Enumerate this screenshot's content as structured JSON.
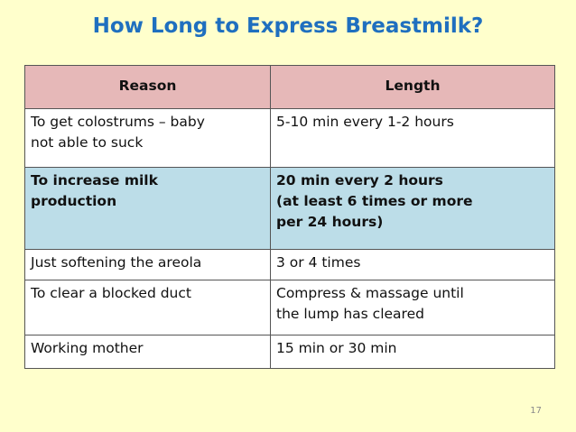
{
  "title": "How Long to Express Breastmilk?",
  "table": {
    "headers": [
      "Reason",
      "Length"
    ],
    "rows": [
      {
        "reason": "To get colostrums – baby\nnot able to suck",
        "length": "5-10 min every 1-2 hours",
        "highlight": false
      },
      {
        "reason": "To increase milk\nproduction",
        "length": "20 min every 2 hours\n (at least 6 times or more\nper 24 hours)",
        "highlight": true
      },
      {
        "reason": "Just softening the areola",
        "length": "3 or 4 times",
        "highlight": false
      },
      {
        "reason": "To clear a blocked duct",
        "length": "Compress & massage until\nthe lump has cleared",
        "highlight": false
      },
      {
        "reason": "Working mother",
        "length": "15 min or 30 min",
        "highlight": false
      }
    ]
  },
  "page_number": "17",
  "colors": {
    "background": "#FFFFCC",
    "title": "#1F6FBF",
    "header_row": "#E6B8B8",
    "highlight_row": "#BCDDE8"
  }
}
